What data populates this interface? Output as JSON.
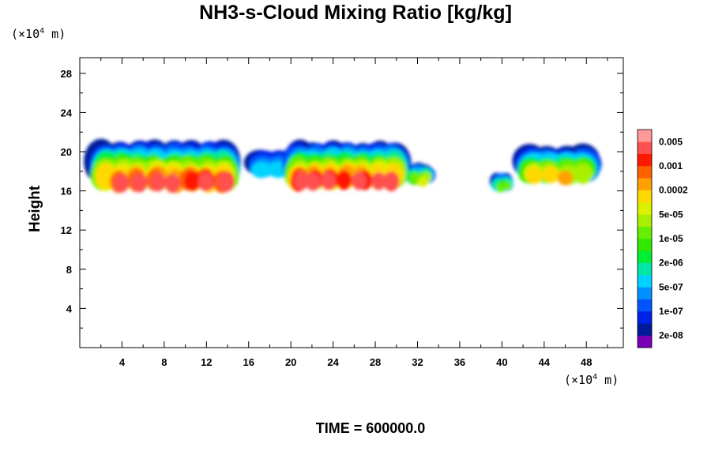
{
  "chart_data": {
    "type": "heatmap",
    "title": "NH3-s-Cloud Mixing Ratio [kg/kg]",
    "ylabel": "Height",
    "xlabel": "",
    "x_unit": "(×10⁴ m)",
    "y_unit": "(×10⁴ m)",
    "footer": "TIME = 600000.0",
    "xlim": [
      0,
      51.5
    ],
    "ylim": [
      0,
      29.6
    ],
    "x_ticks": [
      4,
      8,
      12,
      16,
      20,
      24,
      28,
      32,
      36,
      40,
      44,
      48
    ],
    "y_ticks": [
      4,
      8,
      12,
      16,
      20,
      24,
      28
    ],
    "grid": false,
    "colorbar": {
      "placement": "right",
      "colors": [
        "#7a00b8",
        "#001a99",
        "#0022e6",
        "#0055ff",
        "#0090ff",
        "#00d2ff",
        "#00e8a8",
        "#00ee33",
        "#33e800",
        "#66ee00",
        "#a8f000",
        "#ddf000",
        "#ffd800",
        "#ffa000",
        "#ff6000",
        "#ff1800",
        "#ff5050",
        "#ff9999"
      ],
      "labels": [
        "2e-08",
        "1e-07",
        "5e-07",
        "2e-06",
        "1e-05",
        "5e-05",
        "0.0002",
        "0.001",
        "0.005"
      ]
    },
    "cloud_regions": [
      {
        "x_range": [
          1.5,
          14.5
        ],
        "y_range": [
          16.0,
          19.8
        ],
        "peak_value": "0.001"
      },
      {
        "x_range": [
          16.5,
          19.5
        ],
        "y_range": [
          17.5,
          19.5
        ],
        "peak_value": "2e-06"
      },
      {
        "x_range": [
          20.0,
          30.5
        ],
        "y_range": [
          16.2,
          19.8
        ],
        "peak_value": "0.001"
      },
      {
        "x_range": [
          31.5,
          33.0
        ],
        "y_range": [
          16.8,
          18.2
        ],
        "peak_value": "5e-05"
      },
      {
        "x_range": [
          39.5,
          40.5
        ],
        "y_range": [
          16.2,
          17.4
        ],
        "peak_value": "1e-05"
      },
      {
        "x_range": [
          42.0,
          48.5
        ],
        "y_range": [
          16.8,
          19.6
        ],
        "peak_value": "0.0002"
      }
    ]
  }
}
